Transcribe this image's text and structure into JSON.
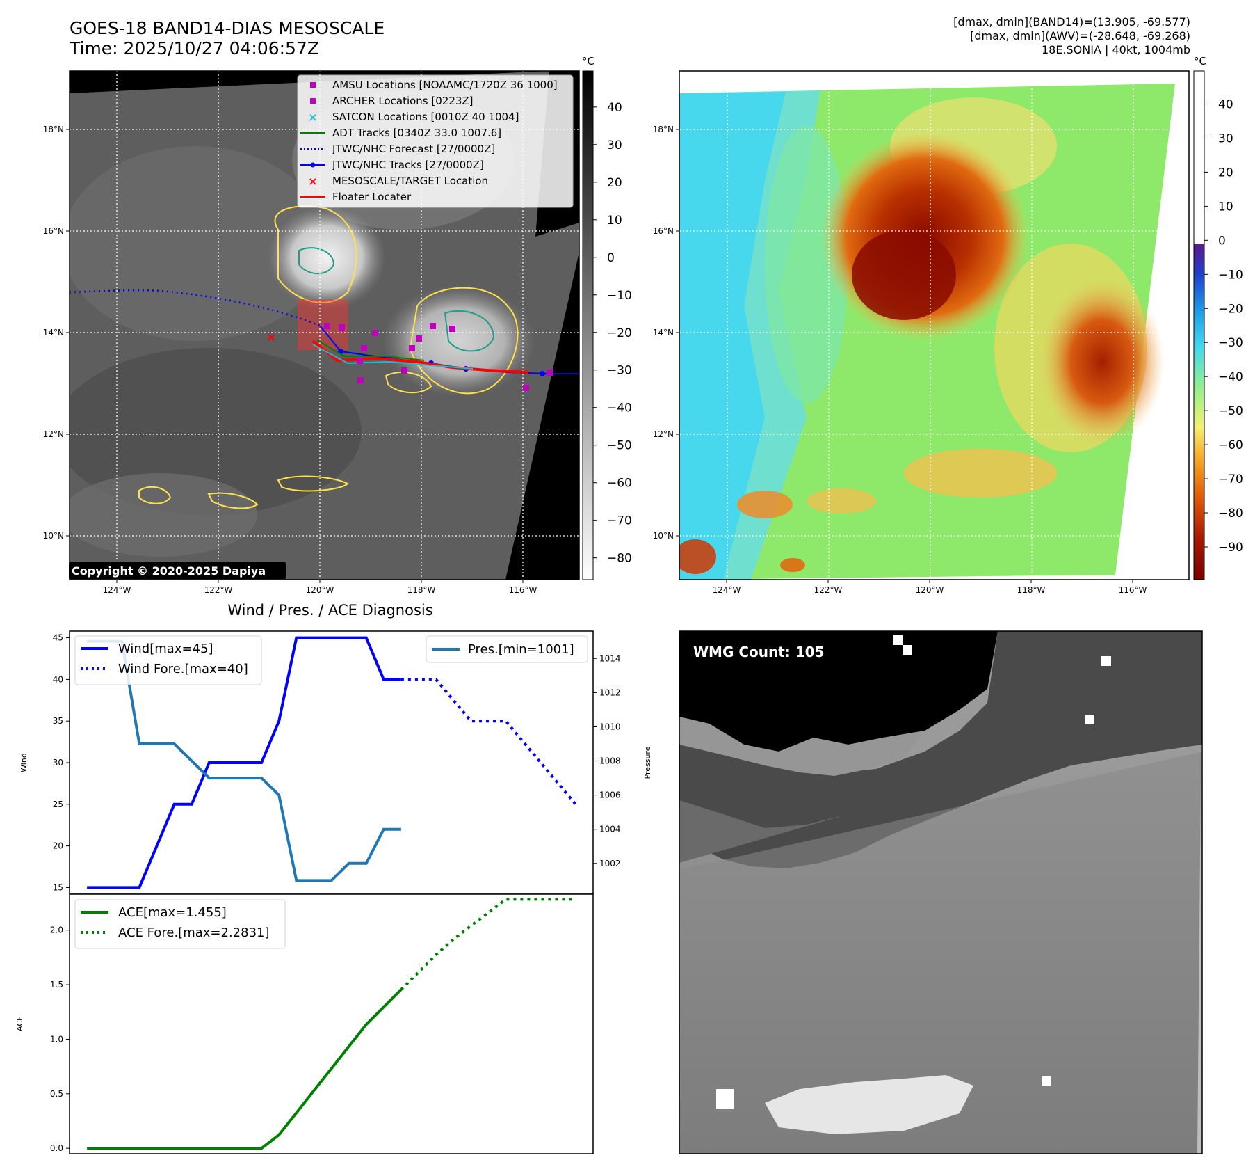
{
  "header": {
    "title_line1": "GOES-18 BAND14-DIAS MESOSCALE",
    "title_line2": "Time: 2025/10/27 04:06:57Z",
    "stats_line1": "[dmax, dmin](BAND14)=(13.905, -69.577)",
    "stats_line2": "[dmax, dmin](AWV)=(-28.648, -69.268)",
    "stats_line3": "18E.SONIA | 40kt, 1004mb"
  },
  "map_axes": {
    "lon_ticks": [
      "124°W",
      "122°W",
      "120°W",
      "118°W",
      "116°W"
    ],
    "lat_ticks": [
      "18°N",
      "16°N",
      "14°N",
      "12°N",
      "10°N"
    ]
  },
  "ir_panel": {
    "copyright": "Copyright © 2020-2025 Dapiya",
    "colorbar_unit": "°C",
    "colorbar_ticks": [
      "40",
      "30",
      "20",
      "10",
      "0",
      "−10",
      "−20",
      "−30",
      "−40",
      "−50",
      "−60",
      "−70",
      "−80"
    ],
    "legend": [
      {
        "label": "AMSU Locations [NOAAMC/1720Z 36 1000]",
        "marker": "square",
        "color": "#bf00bf"
      },
      {
        "label": "ARCHER Locations [0223Z]",
        "marker": "square",
        "color": "#bf00bf"
      },
      {
        "label": "SATCON Locations [0010Z 40 1004]",
        "marker": "x",
        "color": "#17becf"
      },
      {
        "label": "ADT Tracks [0340Z 33.0 1007.6]",
        "marker": "line",
        "color": "#008000"
      },
      {
        "label": "JTWC/NHC Forecast [27/0000Z]",
        "marker": "dotted",
        "color": "#0000ff"
      },
      {
        "label": "JTWC/NHC Tracks [27/0000Z]",
        "marker": "line-dot",
        "color": "#0000ff"
      },
      {
        "label": "MESOSCALE/TARGET Location",
        "marker": "x",
        "color": "#ff0000"
      },
      {
        "label": "Floater Locater",
        "marker": "line",
        "color": "#ff0000"
      }
    ]
  },
  "wv_panel": {
    "colorbar_unit": "°C",
    "colorbar_ticks": [
      "40",
      "30",
      "20",
      "10",
      "0",
      "−10",
      "−20",
      "−30",
      "−40",
      "−50",
      "−60",
      "−70",
      "−80",
      "−90"
    ]
  },
  "wmg_panel": {
    "label": "WMG Count: 105"
  },
  "chart_data": [
    {
      "type": "line",
      "title": "Wind / Pres. / ACE Diagnosis",
      "ylabel": "Wind",
      "ylabel_right": "Pressure",
      "ylim": [
        14.2,
        45.8
      ],
      "ylim_right": [
        1000.2,
        1015.6
      ],
      "yticks": [
        "45",
        "40",
        "35",
        "30",
        "25",
        "20",
        "15"
      ],
      "yticks_right": [
        "1014",
        "1012",
        "1010",
        "1008",
        "1006",
        "1004",
        "1002"
      ],
      "x_index_range": [
        -1,
        29
      ],
      "series": [
        {
          "name": "Wind[max=45]",
          "color": "#0000ff",
          "style": "solid",
          "axis": "left",
          "x": [
            0,
            1,
            2,
            3,
            4,
            5,
            6,
            7,
            8,
            9,
            10,
            11,
            12,
            13,
            14,
            15,
            16,
            17,
            18
          ],
          "values": [
            15,
            15,
            15,
            15,
            20,
            25,
            25,
            30,
            30,
            30,
            30,
            35,
            45,
            45,
            45,
            45,
            45,
            40,
            40
          ]
        },
        {
          "name": "Wind Fore.[max=40]",
          "color": "#0000ff",
          "style": "dotted",
          "axis": "left",
          "x": [
            18,
            19,
            20,
            21,
            22,
            23,
            24,
            25,
            26,
            27,
            28
          ],
          "values": [
            40,
            40,
            40,
            37.5,
            35,
            35,
            35,
            32.5,
            30,
            27.5,
            25
          ]
        },
        {
          "name": "Pres.[min=1001]",
          "color": "#1f77b4",
          "style": "solid",
          "axis": "right",
          "x": [
            0,
            1,
            2,
            3,
            4,
            5,
            6,
            7,
            8,
            9,
            10,
            11,
            12,
            13,
            14,
            15,
            16,
            17,
            18
          ],
          "values": [
            1015,
            1015,
            1015,
            1009,
            1009,
            1009,
            1008,
            1007,
            1007,
            1007,
            1007,
            1006,
            1001,
            1001,
            1001,
            1002,
            1002,
            1004,
            1004
          ]
        }
      ]
    },
    {
      "type": "line",
      "ylabel": "ACE",
      "ylim": [
        -0.05,
        2.33
      ],
      "yticks": [
        "2.0",
        "1.5",
        "1.0",
        "0.5",
        "0.0"
      ],
      "x_index_range": [
        -1,
        29
      ],
      "series": [
        {
          "name": "ACE[max=1.455]",
          "color": "#008000",
          "style": "solid",
          "x": [
            0,
            1,
            2,
            3,
            4,
            5,
            6,
            7,
            8,
            9,
            10,
            11,
            12,
            13,
            14,
            15,
            16,
            17,
            18
          ],
          "values": [
            0,
            0,
            0,
            0,
            0,
            0,
            0,
            0,
            0,
            0,
            0,
            0.123,
            0.325,
            0.528,
            0.73,
            0.933,
            1.135,
            1.295,
            1.455
          ]
        },
        {
          "name": "ACE Fore.[max=2.2831]",
          "color": "#008000",
          "style": "dotted",
          "x": [
            18,
            19,
            20,
            21,
            22,
            23,
            24,
            25,
            26,
            27,
            28
          ],
          "values": [
            1.455,
            1.615,
            1.775,
            1.915,
            2.04,
            2.16,
            2.2831,
            2.2831,
            2.2831,
            2.2831,
            2.2831
          ]
        }
      ]
    }
  ]
}
